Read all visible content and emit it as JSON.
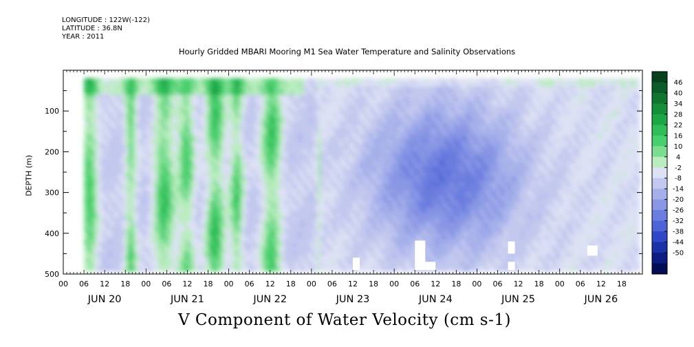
{
  "header": {
    "longitude": "LONGITUDE : 122W(-122)",
    "latitude": "LATITUDE : 36.8N",
    "year": "YEAR : 2011"
  },
  "chart_data": {
    "type": "heatmap",
    "title": "Hourly Gridded MBARI Mooring M1 Sea Water Temperature and Salinity Observations",
    "variable_label": "V Component of Water Velocity (cm s-1)",
    "ylabel": "DEPTH (m)",
    "yaxis": {
      "range": [
        0,
        500
      ],
      "inverted": true,
      "tick_labels": [
        "100",
        "200",
        "300",
        "400",
        "500"
      ],
      "tick_values": [
        100,
        200,
        300,
        400,
        500
      ]
    },
    "xaxis": {
      "hour_labels": [
        "00",
        "06",
        "12",
        "18"
      ],
      "day_labels": [
        "JUN 20",
        "JUN 21",
        "JUN 22",
        "JUN 23",
        "JUN 24",
        "JUN 25",
        "JUN 26"
      ],
      "start": "2011-06-20T00:00",
      "end": "2011-06-27T00:00"
    },
    "data_extent": {
      "time_start": "2011-06-20T06:00",
      "time_end": "2011-06-26T23:00",
      "depth_top": 20,
      "depth_bottom": 490
    },
    "colorbar": {
      "labels": [
        "46",
        "40",
        "34",
        "28",
        "22",
        "16",
        "10",
        "4",
        "-2",
        "-8",
        "-14",
        "-20",
        "-26",
        "-32",
        "-38",
        "-44",
        "-50"
      ],
      "colors": [
        "#06401c",
        "#0b5c28",
        "#10752f",
        "#158f3a",
        "#1ca646",
        "#2fbd58",
        "#48cf6d",
        "#7add92",
        "#b9ecbf",
        "#dde1f4",
        "#c2c8ee",
        "#a5b0ea",
        "#8896e4",
        "#6a7ddf",
        "#4d63d6",
        "#3048c8",
        "#1a31a8",
        "#0c1c80",
        "#030d55"
      ]
    },
    "pattern_note": "Alternating green/blue vertical bands Jun 20-23; predominantly blue (negative V) Jun 23-27 with strongest values ~ -30 cm/s near 150-350 m on Jun 24-25"
  }
}
